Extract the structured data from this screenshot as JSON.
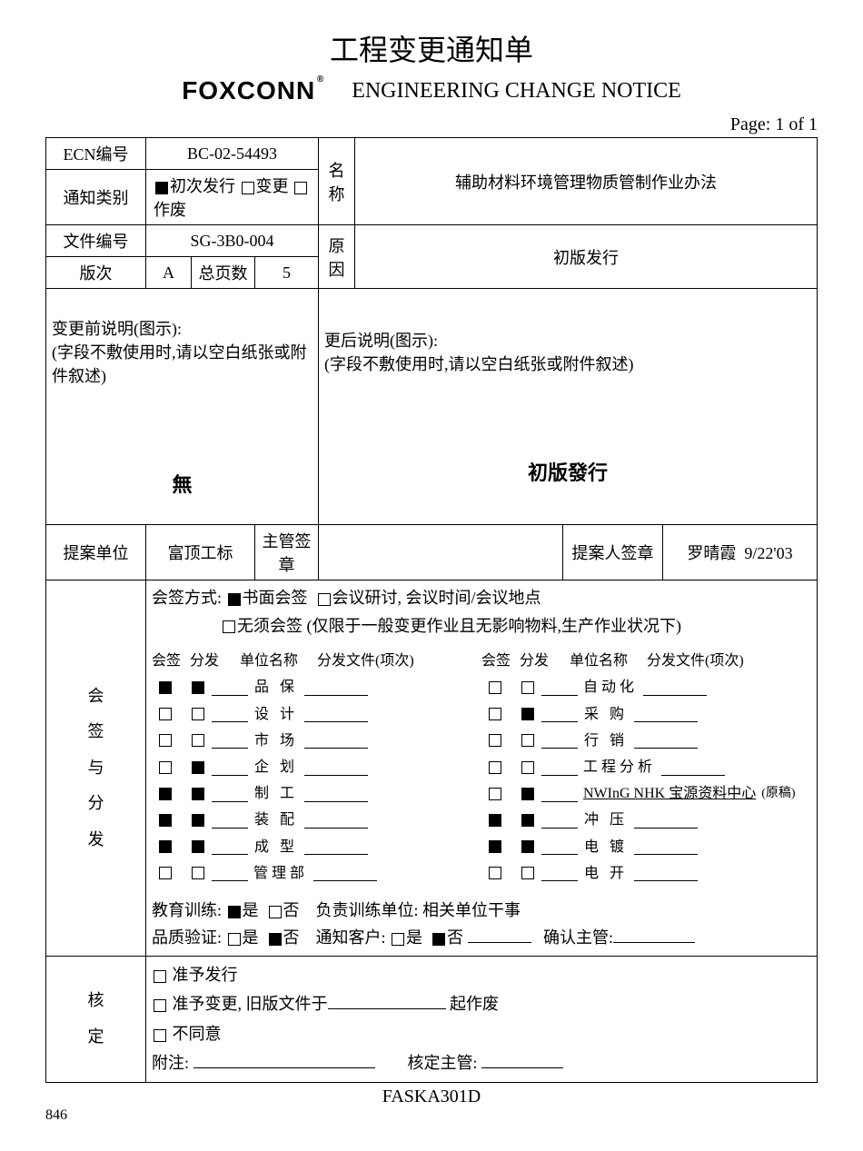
{
  "header": {
    "title_cn": "工程变更通知单",
    "logo": "FOXCONN",
    "title_en": "ENGINEERING CHANGE NOTICE",
    "page": "Page: 1 of 1"
  },
  "info": {
    "ecn_label": "ECN编号",
    "ecn_value": "BC-02-54493",
    "notice_type_label": "通知类别",
    "notice_type_opt1": "初次发行",
    "notice_type_opt2": "变更",
    "notice_type_opt3": "作废",
    "name_label": "名称",
    "name_value": "辅助材料环境管理物质管制作业办法",
    "doc_no_label": "文件编号",
    "doc_no_value": "SG-3B0-004",
    "reason_label": "原因",
    "reason_value": "初版发行",
    "rev_label": "版次",
    "rev_value": "A",
    "total_pages_label": "总页数",
    "total_pages_value": "5"
  },
  "desc": {
    "before_label": "变更前说明(图示):",
    "before_note": "(字段不敷使用时,请以空白纸张或附件叙述)",
    "before_content": "無",
    "after_label": "更后说明(图示):",
    "after_note": "(字段不敷使用时,请以空白纸张或附件叙述)",
    "after_content": "初版發行"
  },
  "proposer": {
    "unit_label": "提案单位",
    "unit_value": "富顶工标",
    "mgr_sign_label": "主管签章",
    "person_sign_label": "提案人签章",
    "person_name": "罗晴霞",
    "date": "9/22'03"
  },
  "signoff": {
    "section_label": "会签与分发",
    "method_label": "会签方式:",
    "method_opt1": "书面会签",
    "method_opt2": "会议研讨, 会议时间/会议地点",
    "method_opt3": "无须会签 (仅限于一般变更作业且无影响物料,生产作业状况下)",
    "col_headers": {
      "sign": "会签",
      "dist": "分发",
      "unit": "单位名称",
      "docs": "分发文件(项次)"
    },
    "left_rows": [
      {
        "sign": true,
        "dist": true,
        "dept": "品 保"
      },
      {
        "sign": false,
        "dist": false,
        "dept": "设 计"
      },
      {
        "sign": false,
        "dist": false,
        "dept": "市 场"
      },
      {
        "sign": false,
        "dist": true,
        "dept": "企 划"
      },
      {
        "sign": true,
        "dist": true,
        "dept": "制 工"
      },
      {
        "sign": true,
        "dist": true,
        "dept": "装 配"
      },
      {
        "sign": true,
        "dist": true,
        "dept": "成 型"
      },
      {
        "sign": false,
        "dist": false,
        "dept": "管理部"
      }
    ],
    "right_rows": [
      {
        "sign": false,
        "dist": false,
        "dept": "自动化"
      },
      {
        "sign": false,
        "dist": true,
        "dept": "采 购"
      },
      {
        "sign": false,
        "dist": false,
        "dept": "行 销"
      },
      {
        "sign": false,
        "dist": false,
        "dept": "工程分析"
      },
      {
        "sign": false,
        "dist": true,
        "dept": "NWInG NHK 宝源资料中心",
        "note": "(原稿)",
        "underline": true
      },
      {
        "sign": true,
        "dist": true,
        "dept": "冲 压"
      },
      {
        "sign": true,
        "dist": true,
        "dept": "电 镀"
      },
      {
        "sign": false,
        "dist": false,
        "dept": "电 开"
      }
    ],
    "training_label": "教育训练:",
    "training_yes": "是",
    "training_no": "否",
    "training_unit_label": "负责训练单位: 相关单位干事",
    "quality_label": "品质验证:",
    "notify_label": "通知客户:",
    "confirm_mgr_label": "确认主管:"
  },
  "approval": {
    "section_label": "核定",
    "opt1": "准予发行",
    "opt2_pre": "准予变更, 旧版文件于",
    "opt2_post": "起作废",
    "opt3": "不同意",
    "attach_label": "附注:",
    "approve_mgr_label": "核定主管:"
  },
  "footer_code": "FASKA301D"
}
